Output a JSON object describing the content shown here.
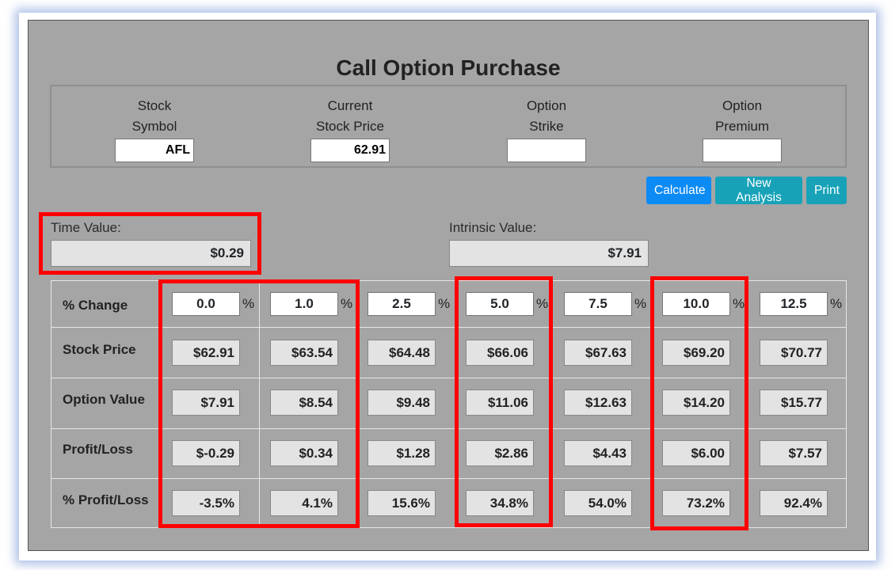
{
  "title": "Call Option Purchase",
  "inputs": {
    "stock_symbol": {
      "label1": "Stock",
      "label2": "Symbol",
      "value": "AFL"
    },
    "current_price": {
      "label1": "Current",
      "label2": "Stock Price",
      "value": "62.91"
    },
    "option_strike": {
      "label1": "Option",
      "label2": "Strike",
      "value": ""
    },
    "option_premium": {
      "label1": "Option",
      "label2": "Premium",
      "value": ""
    }
  },
  "buttons": {
    "calculate": "Calculate",
    "new_analysis": "New Analysis",
    "print": "Print"
  },
  "time_value": {
    "label": "Time Value:",
    "value": "$0.29"
  },
  "intrinsic_value": {
    "label": "Intrinsic Value:",
    "value": "$7.91"
  },
  "table": {
    "row_labels": {
      "change": "% Change",
      "stock_price": "Stock Price",
      "option_value": "Option Value",
      "profit_loss": "Profit/Loss",
      "pct_profit_loss": "% Profit/Loss"
    },
    "pct_sign": "%",
    "columns": [
      {
        "change": "0.0",
        "stock_price": "$62.91",
        "option_value": "$7.91",
        "profit_loss": "$-0.29",
        "pct_profit_loss": "-3.5%"
      },
      {
        "change": "1.0",
        "stock_price": "$63.54",
        "option_value": "$8.54",
        "profit_loss": "$0.34",
        "pct_profit_loss": "4.1%"
      },
      {
        "change": "2.5",
        "stock_price": "$64.48",
        "option_value": "$9.48",
        "profit_loss": "$1.28",
        "pct_profit_loss": "15.6%"
      },
      {
        "change": "5.0",
        "stock_price": "$66.06",
        "option_value": "$11.06",
        "profit_loss": "$2.86",
        "pct_profit_loss": "34.8%"
      },
      {
        "change": "7.5",
        "stock_price": "$67.63",
        "option_value": "$12.63",
        "profit_loss": "$4.43",
        "pct_profit_loss": "54.0%"
      },
      {
        "change": "10.0",
        "stock_price": "$69.20",
        "option_value": "$14.20",
        "profit_loss": "$6.00",
        "pct_profit_loss": "73.2%"
      },
      {
        "change": "12.5",
        "stock_price": "$70.77",
        "option_value": "$15.77",
        "profit_loss": "$7.57",
        "pct_profit_loss": "92.4%"
      }
    ]
  },
  "colors": {
    "highlight": "#ff0000",
    "panel": "#a5a5a5",
    "button_primary": "#0d8bf4",
    "button_info": "#17a2b8"
  }
}
